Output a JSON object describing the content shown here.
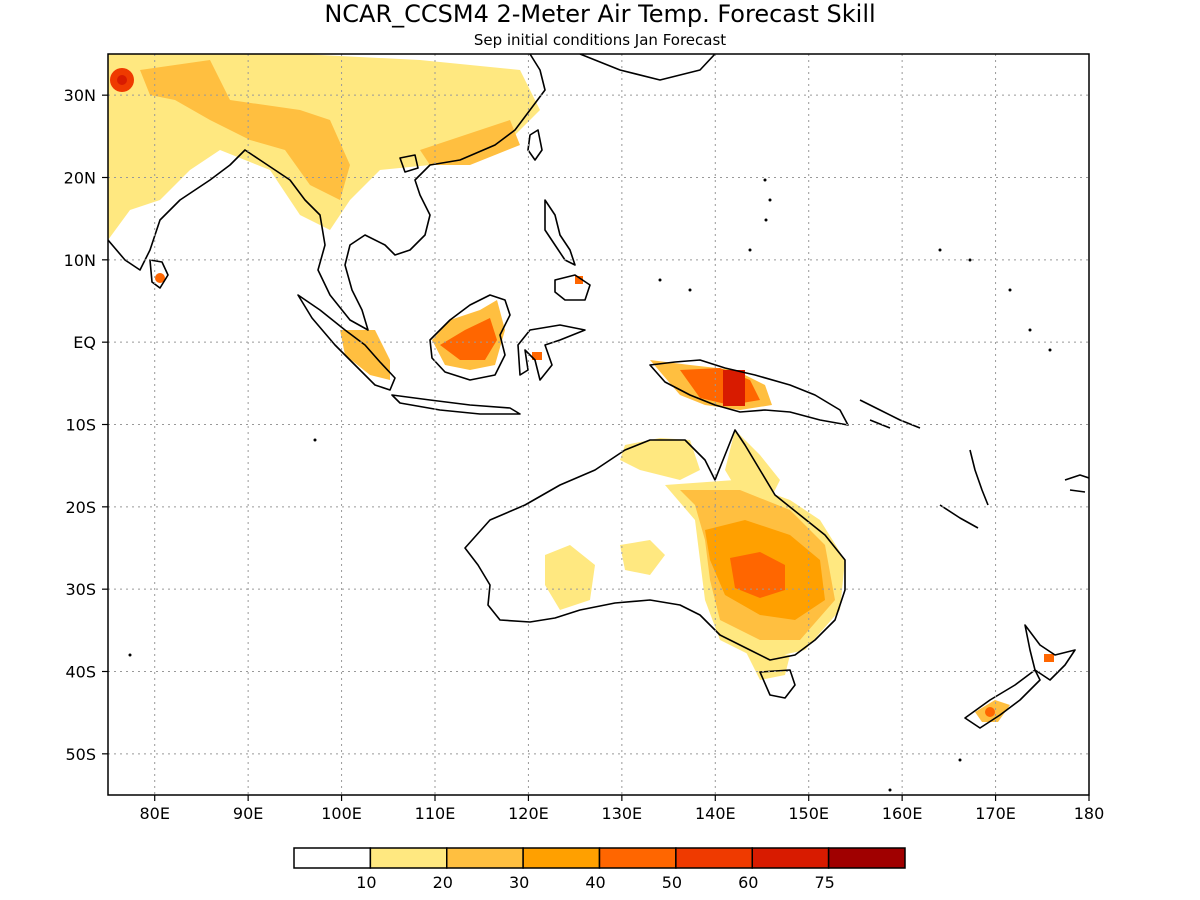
{
  "title": "NCAR_CCSM4 2-Meter Air Temp. Forecast Skill",
  "subtitle": "Sep initial conditions   Jan Forecast",
  "lat_labels": [
    "30N",
    "20N",
    "10N",
    "EQ",
    "10S",
    "20S",
    "30S",
    "40S",
    "50S"
  ],
  "lon_labels": [
    "80E",
    "90E",
    "100E",
    "110E",
    "120E",
    "130E",
    "140E",
    "150E",
    "160E",
    "170E",
    "180"
  ],
  "legend": {
    "tick_labels": [
      "10",
      "20",
      "30",
      "40",
      "50",
      "60",
      "75"
    ],
    "colors": [
      "#ffffff",
      "#ffe880",
      "#ffbf40",
      "#ffa000",
      "#ff6600",
      "#ef3a00",
      "#d81b00",
      "#a00000"
    ]
  },
  "map": {
    "lon_range": [
      75,
      180
    ],
    "lat_range": [
      -55,
      35
    ],
    "grid": "dotted",
    "regions": [
      "India",
      "Sri Lanka",
      "Southeast Asia",
      "Borneo",
      "Sumatra",
      "Java",
      "Sulawesi",
      "Philippines",
      "New Guinea",
      "Australia",
      "New Zealand",
      "Japan"
    ]
  }
}
